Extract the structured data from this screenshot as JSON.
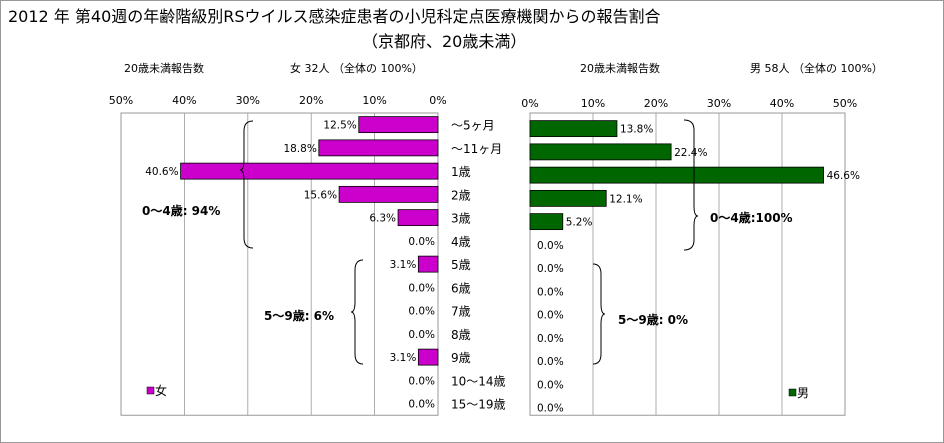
{
  "title": {
    "line1": "2012 年 第40週の年齢階級別RSウイルス感染症患者の小児科定点医療機関からの報告割合",
    "line2": "（京都府、20歳未満）"
  },
  "header": {
    "female_label": "20歳未満報告数",
    "female_total": "女  32人 （全体の  100%）",
    "male_label": "20歳未満報告数",
    "male_total": "男  58人 （全体の  100%）"
  },
  "chart_data": [
    {
      "type": "bar",
      "orientation": "horizontal",
      "direction": "right-to-left",
      "series": [
        {
          "name": "女",
          "color": "#cc00cc",
          "values": [
            12.5,
            18.8,
            40.6,
            15.6,
            6.3,
            0.0,
            3.1,
            0.0,
            0.0,
            0.0,
            3.1,
            0.0,
            0.0
          ]
        }
      ],
      "categories": [
        "～5ヶ月",
        "～11ヶ月",
        "1歳",
        "2歳",
        "3歳",
        "4歳",
        "5歳",
        "6歳",
        "7歳",
        "8歳",
        "9歳",
        "10～14歳",
        "15～19歳"
      ],
      "value_labels": [
        "12.5%",
        "18.8%",
        "40.6%",
        "15.6%",
        "6.3%",
        "0.0%",
        "3.1%",
        "0.0%",
        "0.0%",
        "0.0%",
        "3.1%",
        "0.0%",
        "0.0%"
      ],
      "xlim": [
        0,
        50
      ],
      "ticks": [
        "50%",
        "40%",
        "30%",
        "20%",
        "10%",
        "0%"
      ],
      "grid": true,
      "legend_position": "bottom-left",
      "annotations": [
        "0～4歳:  94%",
        "5～9歳:  6%"
      ]
    },
    {
      "type": "bar",
      "orientation": "horizontal",
      "direction": "left-to-right",
      "series": [
        {
          "name": "男",
          "color": "#006600",
          "values": [
            13.8,
            22.4,
            46.6,
            12.1,
            5.2,
            0.0,
            0.0,
            0.0,
            0.0,
            0.0,
            0.0,
            0.0,
            0.0
          ]
        }
      ],
      "categories": [
        "～5ヶ月",
        "～11ヶ月",
        "1歳",
        "2歳",
        "3歳",
        "4歳",
        "5歳",
        "6歳",
        "7歳",
        "8歳",
        "9歳",
        "10～14歳",
        "15～19歳"
      ],
      "value_labels": [
        "13.8%",
        "22.4%",
        "46.6%",
        "12.1%",
        "5.2%",
        "0.0%",
        "0.0%",
        "0.0%",
        "0.0%",
        "0.0%",
        "0.0%",
        "0.0%",
        "0.0%"
      ],
      "xlim": [
        0,
        50
      ],
      "ticks": [
        "0%",
        "10%",
        "20%",
        "30%",
        "40%",
        "50%"
      ],
      "grid": true,
      "legend_position": "bottom-right",
      "annotations": [
        "0～4歳:100%",
        "5～9歳:  0%"
      ]
    }
  ]
}
